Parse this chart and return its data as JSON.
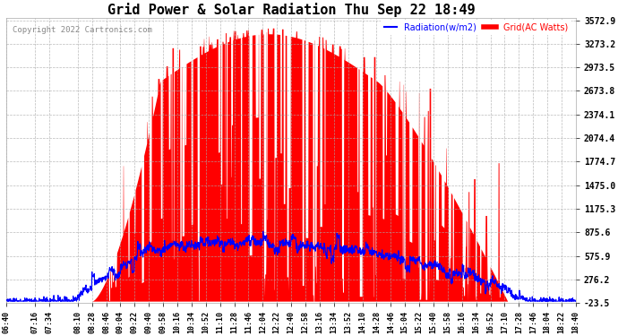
{
  "title": "Grid Power & Solar Radiation Thu Sep 22 18:49",
  "copyright": "Copyright 2022 Cartronics.com",
  "legend_radiation": "Radiation(w/m2)",
  "legend_grid": "Grid(AC Watts)",
  "background_color": "#ffffff",
  "plot_bg_color": "#ffffff",
  "title_color": "#000000",
  "copyright_color": "#888888",
  "radiation_color": "#0000ff",
  "grid_color_fill": "#ff0000",
  "grid_color_line": "#ff0000",
  "ymin": -23.5,
  "ymax": 3572.9,
  "yticks": [
    -23.5,
    276.2,
    575.9,
    875.6,
    1175.3,
    1475.0,
    1774.7,
    2074.4,
    2374.1,
    2673.8,
    2973.5,
    3273.2,
    3572.9
  ],
  "xtick_labels": [
    "06:40",
    "07:16",
    "07:34",
    "08:10",
    "08:28",
    "08:46",
    "09:04",
    "09:22",
    "09:40",
    "09:58",
    "10:16",
    "10:34",
    "10:52",
    "11:10",
    "11:28",
    "11:46",
    "12:04",
    "12:22",
    "12:40",
    "12:58",
    "13:16",
    "13:34",
    "13:52",
    "14:10",
    "14:28",
    "14:46",
    "15:04",
    "15:22",
    "15:40",
    "15:58",
    "16:16",
    "16:34",
    "16:52",
    "17:10",
    "17:28",
    "17:46",
    "18:04",
    "18:22",
    "18:40"
  ],
  "figsize": [
    6.9,
    3.75
  ],
  "dpi": 100
}
